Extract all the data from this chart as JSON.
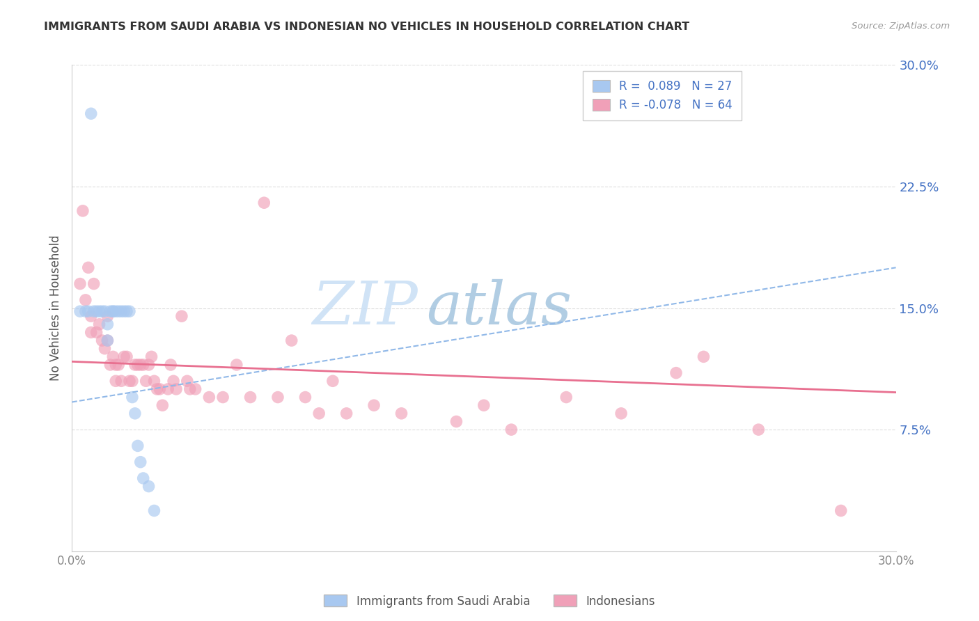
{
  "title": "IMMIGRANTS FROM SAUDI ARABIA VS INDONESIAN NO VEHICLES IN HOUSEHOLD CORRELATION CHART",
  "source": "Source: ZipAtlas.com",
  "ylabel": "No Vehicles in Household",
  "xmin": 0.0,
  "xmax": 0.3,
  "ymin": 0.0,
  "ymax": 0.3,
  "yticks": [
    0.075,
    0.15,
    0.225,
    0.3
  ],
  "ytick_labels": [
    "7.5%",
    "15.0%",
    "22.5%",
    "30.0%"
  ],
  "xticks": [
    0.0,
    0.3
  ],
  "xtick_labels": [
    "0.0%",
    "30.0%"
  ],
  "legend_r1": "R =  0.089   N = 27",
  "legend_r2": "R = -0.078   N = 64",
  "blue_color": "#A8C8F0",
  "pink_color": "#F0A0B8",
  "trend_blue_color": "#90B8E8",
  "trend_pink_color": "#E87090",
  "watermark_zip": "ZIP",
  "watermark_atlas": "atlas",
  "saudi_scatter": [
    [
      0.003,
      0.148
    ],
    [
      0.005,
      0.148
    ],
    [
      0.006,
      0.148
    ],
    [
      0.007,
      0.27
    ],
    [
      0.008,
      0.148
    ],
    [
      0.009,
      0.148
    ],
    [
      0.01,
      0.148
    ],
    [
      0.011,
      0.148
    ],
    [
      0.012,
      0.148
    ],
    [
      0.013,
      0.14
    ],
    [
      0.013,
      0.13
    ],
    [
      0.014,
      0.148
    ],
    [
      0.015,
      0.148
    ],
    [
      0.015,
      0.148
    ],
    [
      0.016,
      0.148
    ],
    [
      0.017,
      0.148
    ],
    [
      0.018,
      0.148
    ],
    [
      0.019,
      0.148
    ],
    [
      0.02,
      0.148
    ],
    [
      0.021,
      0.148
    ],
    [
      0.022,
      0.095
    ],
    [
      0.023,
      0.085
    ],
    [
      0.024,
      0.065
    ],
    [
      0.025,
      0.055
    ],
    [
      0.026,
      0.045
    ],
    [
      0.028,
      0.04
    ],
    [
      0.03,
      0.025
    ]
  ],
  "indonesian_scatter": [
    [
      0.003,
      0.165
    ],
    [
      0.004,
      0.21
    ],
    [
      0.005,
      0.155
    ],
    [
      0.006,
      0.175
    ],
    [
      0.007,
      0.145
    ],
    [
      0.007,
      0.135
    ],
    [
      0.008,
      0.165
    ],
    [
      0.009,
      0.135
    ],
    [
      0.01,
      0.14
    ],
    [
      0.011,
      0.13
    ],
    [
      0.012,
      0.125
    ],
    [
      0.013,
      0.145
    ],
    [
      0.013,
      0.13
    ],
    [
      0.014,
      0.115
    ],
    [
      0.015,
      0.12
    ],
    [
      0.016,
      0.115
    ],
    [
      0.016,
      0.105
    ],
    [
      0.017,
      0.115
    ],
    [
      0.018,
      0.105
    ],
    [
      0.019,
      0.12
    ],
    [
      0.02,
      0.12
    ],
    [
      0.021,
      0.105
    ],
    [
      0.022,
      0.105
    ],
    [
      0.023,
      0.115
    ],
    [
      0.024,
      0.115
    ],
    [
      0.025,
      0.115
    ],
    [
      0.026,
      0.115
    ],
    [
      0.027,
      0.105
    ],
    [
      0.028,
      0.115
    ],
    [
      0.029,
      0.12
    ],
    [
      0.03,
      0.105
    ],
    [
      0.031,
      0.1
    ],
    [
      0.032,
      0.1
    ],
    [
      0.033,
      0.09
    ],
    [
      0.035,
      0.1
    ],
    [
      0.036,
      0.115
    ],
    [
      0.037,
      0.105
    ],
    [
      0.038,
      0.1
    ],
    [
      0.04,
      0.145
    ],
    [
      0.042,
      0.105
    ],
    [
      0.043,
      0.1
    ],
    [
      0.045,
      0.1
    ],
    [
      0.05,
      0.095
    ],
    [
      0.055,
      0.095
    ],
    [
      0.06,
      0.115
    ],
    [
      0.065,
      0.095
    ],
    [
      0.07,
      0.215
    ],
    [
      0.075,
      0.095
    ],
    [
      0.08,
      0.13
    ],
    [
      0.085,
      0.095
    ],
    [
      0.09,
      0.085
    ],
    [
      0.095,
      0.105
    ],
    [
      0.1,
      0.085
    ],
    [
      0.11,
      0.09
    ],
    [
      0.12,
      0.085
    ],
    [
      0.14,
      0.08
    ],
    [
      0.15,
      0.09
    ],
    [
      0.16,
      0.075
    ],
    [
      0.18,
      0.095
    ],
    [
      0.2,
      0.085
    ],
    [
      0.22,
      0.11
    ],
    [
      0.23,
      0.12
    ],
    [
      0.25,
      0.075
    ],
    [
      0.28,
      0.025
    ]
  ],
  "blue_trend": [
    0.0,
    0.092,
    0.3,
    0.175
  ],
  "pink_trend": [
    0.0,
    0.117,
    0.3,
    0.098
  ]
}
